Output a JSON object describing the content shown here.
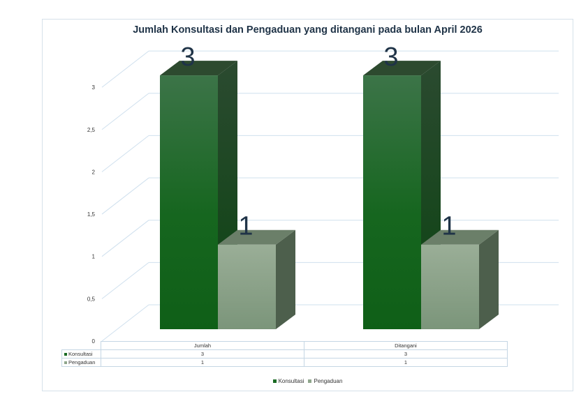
{
  "title": "Jumlah  Konsultasi dan Pengaduan yang ditangani pada bulan April 2026",
  "colors": {
    "konsultasi": "#1a6b24",
    "pengaduan": "#8fa68c",
    "grid": "#cfe0ee"
  },
  "chart_data": {
    "type": "bar",
    "title": "Jumlah  Konsultasi dan Pengaduan yang ditangani pada bulan April 2026",
    "categories": [
      "Jumlah",
      "Ditangani"
    ],
    "series": [
      {
        "name": "Konsultasi",
        "values": [
          3,
          3
        ]
      },
      {
        "name": "Pengaduan",
        "values": [
          1,
          1
        ]
      }
    ],
    "yticks": [
      "0",
      "0,5",
      "1",
      "1,5",
      "2",
      "2,5",
      "3"
    ],
    "ylim": [
      0,
      3.5
    ],
    "grid": true,
    "legend": "bottom",
    "data_table": true,
    "style": "3d-column"
  },
  "legend": [
    {
      "label": "Konsultasi",
      "color": "#1a6b24"
    },
    {
      "label": "Pengaduan",
      "color": "#8fa68c"
    }
  ],
  "table": {
    "headers": [
      "Jumlah",
      "Ditangani"
    ],
    "rows": [
      {
        "label": "Konsultasi",
        "values": [
          "3",
          "3"
        ]
      },
      {
        "label": "Pengaduan",
        "values": [
          "1",
          "1"
        ]
      }
    ]
  }
}
